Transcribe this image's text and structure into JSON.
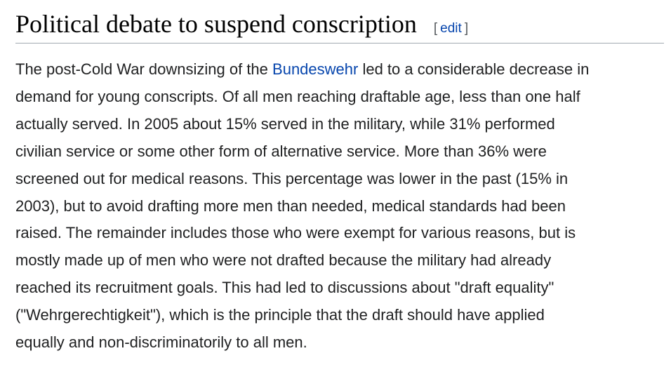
{
  "section": {
    "title": "Political debate to suspend conscription",
    "edit_open": "[",
    "edit_label": "edit",
    "edit_close": "]"
  },
  "paragraph": {
    "line1_before": "The post-Cold War downsizing of the ",
    "line1_link": "Bundeswehr",
    "line1_after": " led to a considerable decrease in",
    "lines": [
      "demand for young conscripts. Of all men reaching draftable age, less than one half",
      "actually served. In 2005 about 15% served in the military, while 31% performed",
      "civilian service or some other form of alternative service. More than 36% were",
      "screened out for medical reasons. This percentage was lower in the past (15% in",
      "2003), but to avoid drafting more men than needed, medical standards had been",
      "raised. The remainder includes those who were exempt for various reasons, but is",
      "mostly made up of men who were not drafted because the military had already",
      "reached its recruitment goals. This had led to discussions about \"draft equality\"",
      "(\"Wehrgerechtigkeit\"), which is the principle that the draft should have applied",
      "equally and non-discriminatorily to all men."
    ]
  }
}
